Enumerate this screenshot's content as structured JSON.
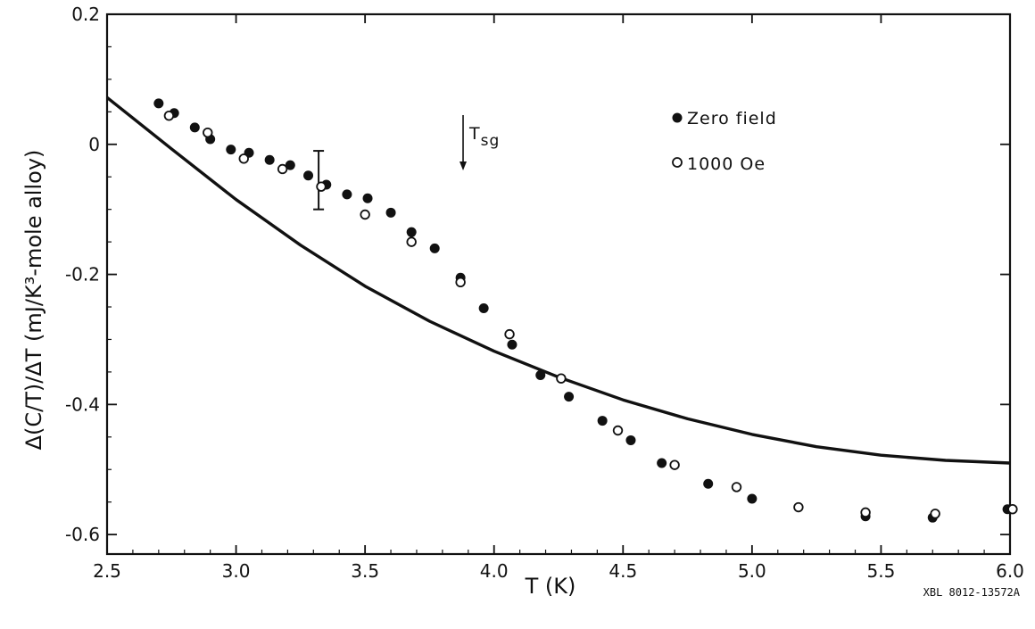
{
  "chart_data": {
    "type": "scatter",
    "xlabel": "T (K)",
    "ylabel": "Δ(C/T)/ΔT  (mJ/K³-mole alloy)",
    "xlim": [
      2.5,
      6.0
    ],
    "ylim": [
      -0.63,
      0.2
    ],
    "xticks": [
      2.5,
      3.0,
      3.5,
      4.0,
      4.5,
      5.0,
      5.5,
      6.0
    ],
    "xtick_labels": [
      "2.5",
      "3.0",
      "3.5",
      "4.0",
      "4.5",
      "5.0",
      "5.5",
      "6.0"
    ],
    "yticks": [
      0.2,
      0,
      -0.2,
      -0.4,
      -0.6
    ],
    "ytick_labels": [
      "0.2",
      "0",
      "-0.2",
      "-0.4",
      "-0.6"
    ],
    "grid": false,
    "legend_position": "top-right",
    "series": [
      {
        "name": "Zero field",
        "marker": "filled-circle",
        "color": "#111111",
        "points": [
          [
            2.7,
            0.063
          ],
          [
            2.76,
            0.048
          ],
          [
            2.84,
            0.026
          ],
          [
            2.9,
            0.008
          ],
          [
            2.98,
            -0.008
          ],
          [
            3.05,
            -0.013
          ],
          [
            3.13,
            -0.024
          ],
          [
            3.21,
            -0.032
          ],
          [
            3.28,
            -0.048
          ],
          [
            3.35,
            -0.062
          ],
          [
            3.43,
            -0.077
          ],
          [
            3.51,
            -0.083
          ],
          [
            3.6,
            -0.105
          ],
          [
            3.68,
            -0.135
          ],
          [
            3.77,
            -0.16
          ],
          [
            3.87,
            -0.205
          ],
          [
            3.96,
            -0.252
          ],
          [
            4.07,
            -0.308
          ],
          [
            4.18,
            -0.355
          ],
          [
            4.29,
            -0.388
          ],
          [
            4.42,
            -0.425
          ],
          [
            4.53,
            -0.455
          ],
          [
            4.65,
            -0.49
          ],
          [
            4.83,
            -0.522
          ],
          [
            5.0,
            -0.545
          ],
          [
            5.44,
            -0.572
          ],
          [
            5.7,
            -0.574
          ],
          [
            5.99,
            -0.561
          ]
        ]
      },
      {
        "name": "1000 Oe",
        "marker": "open-circle",
        "color": "#111111",
        "points": [
          [
            2.74,
            0.044
          ],
          [
            2.89,
            0.018
          ],
          [
            3.03,
            -0.022
          ],
          [
            3.18,
            -0.038
          ],
          [
            3.33,
            -0.065
          ],
          [
            3.5,
            -0.108
          ],
          [
            3.68,
            -0.15
          ],
          [
            3.87,
            -0.212
          ],
          [
            4.06,
            -0.292
          ],
          [
            4.26,
            -0.36
          ],
          [
            4.48,
            -0.44
          ],
          [
            4.7,
            -0.493
          ],
          [
            4.94,
            -0.527
          ],
          [
            5.18,
            -0.558
          ],
          [
            5.44,
            -0.566
          ],
          [
            5.71,
            -0.568
          ],
          [
            6.01,
            -0.561
          ]
        ]
      },
      {
        "name": "",
        "marker": "line",
        "color": "#111111",
        "points": [
          [
            2.5,
            0.072
          ],
          [
            2.75,
            -0.007
          ],
          [
            3.0,
            -0.085
          ],
          [
            3.25,
            -0.155
          ],
          [
            3.5,
            -0.218
          ],
          [
            3.75,
            -0.272
          ],
          [
            4.0,
            -0.318
          ],
          [
            4.25,
            -0.358
          ],
          [
            4.5,
            -0.393
          ],
          [
            4.75,
            -0.422
          ],
          [
            5.0,
            -0.446
          ],
          [
            5.25,
            -0.465
          ],
          [
            5.5,
            -0.478
          ],
          [
            5.75,
            -0.486
          ],
          [
            6.0,
            -0.49
          ]
        ]
      }
    ],
    "error_bar": {
      "x": 3.32,
      "y": -0.055,
      "low": -0.1,
      "high": -0.01
    },
    "annotation": {
      "text": "T",
      "subscript": "sg",
      "x": 3.88,
      "arrow_from_y": 0.045,
      "arrow_to_y": -0.04
    },
    "credit": "XBL 8012-13572A"
  }
}
